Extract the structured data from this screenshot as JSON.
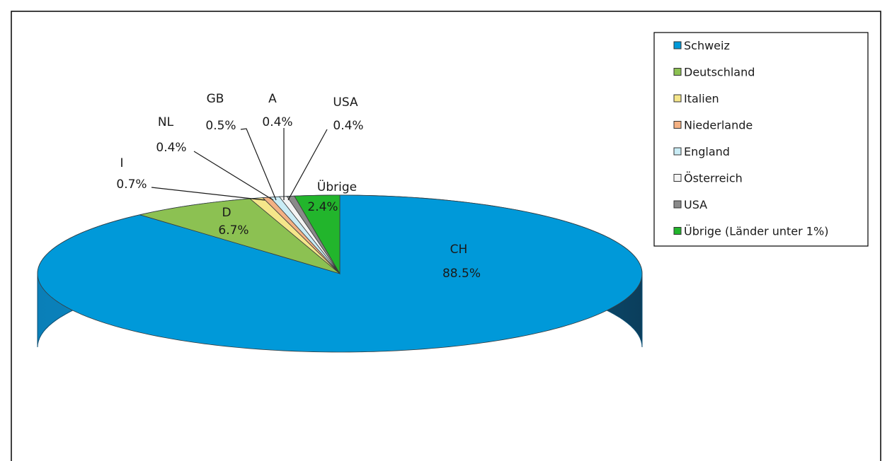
{
  "chart_data": {
    "type": "pie",
    "variant": "3d",
    "grid": false,
    "legend_position": "top-right",
    "slices": [
      {
        "legend": "Schweiz",
        "label": "CH",
        "value": 88.5,
        "value_text": "88.5%",
        "color": "#0099d9"
      },
      {
        "legend": "Deutschland",
        "label": "D",
        "value": 6.7,
        "value_text": "6.7%",
        "color": "#8cc152"
      },
      {
        "legend": "Italien",
        "label": "I",
        "value": 0.7,
        "value_text": "0.7%",
        "color": "#f5e68a"
      },
      {
        "legend": "Niederlande",
        "label": "NL",
        "value": 0.4,
        "value_text": "0.4%",
        "color": "#f4b183"
      },
      {
        "legend": "England",
        "label": "GB",
        "value": 0.5,
        "value_text": "0.5%",
        "color": "#c9ecf5"
      },
      {
        "legend": "Österreich",
        "label": "A",
        "value": 0.4,
        "value_text": "0.4%",
        "color": "#f4f4f4"
      },
      {
        "legend": "USA",
        "label": "USA",
        "value": 0.4,
        "value_text": "0.4%",
        "color": "#8a8a8a"
      },
      {
        "legend": "Übrige (Länder unter 1%)",
        "label": "Übrige",
        "value": 2.4,
        "value_text": "2.4%",
        "color": "#22b52c"
      }
    ]
  }
}
